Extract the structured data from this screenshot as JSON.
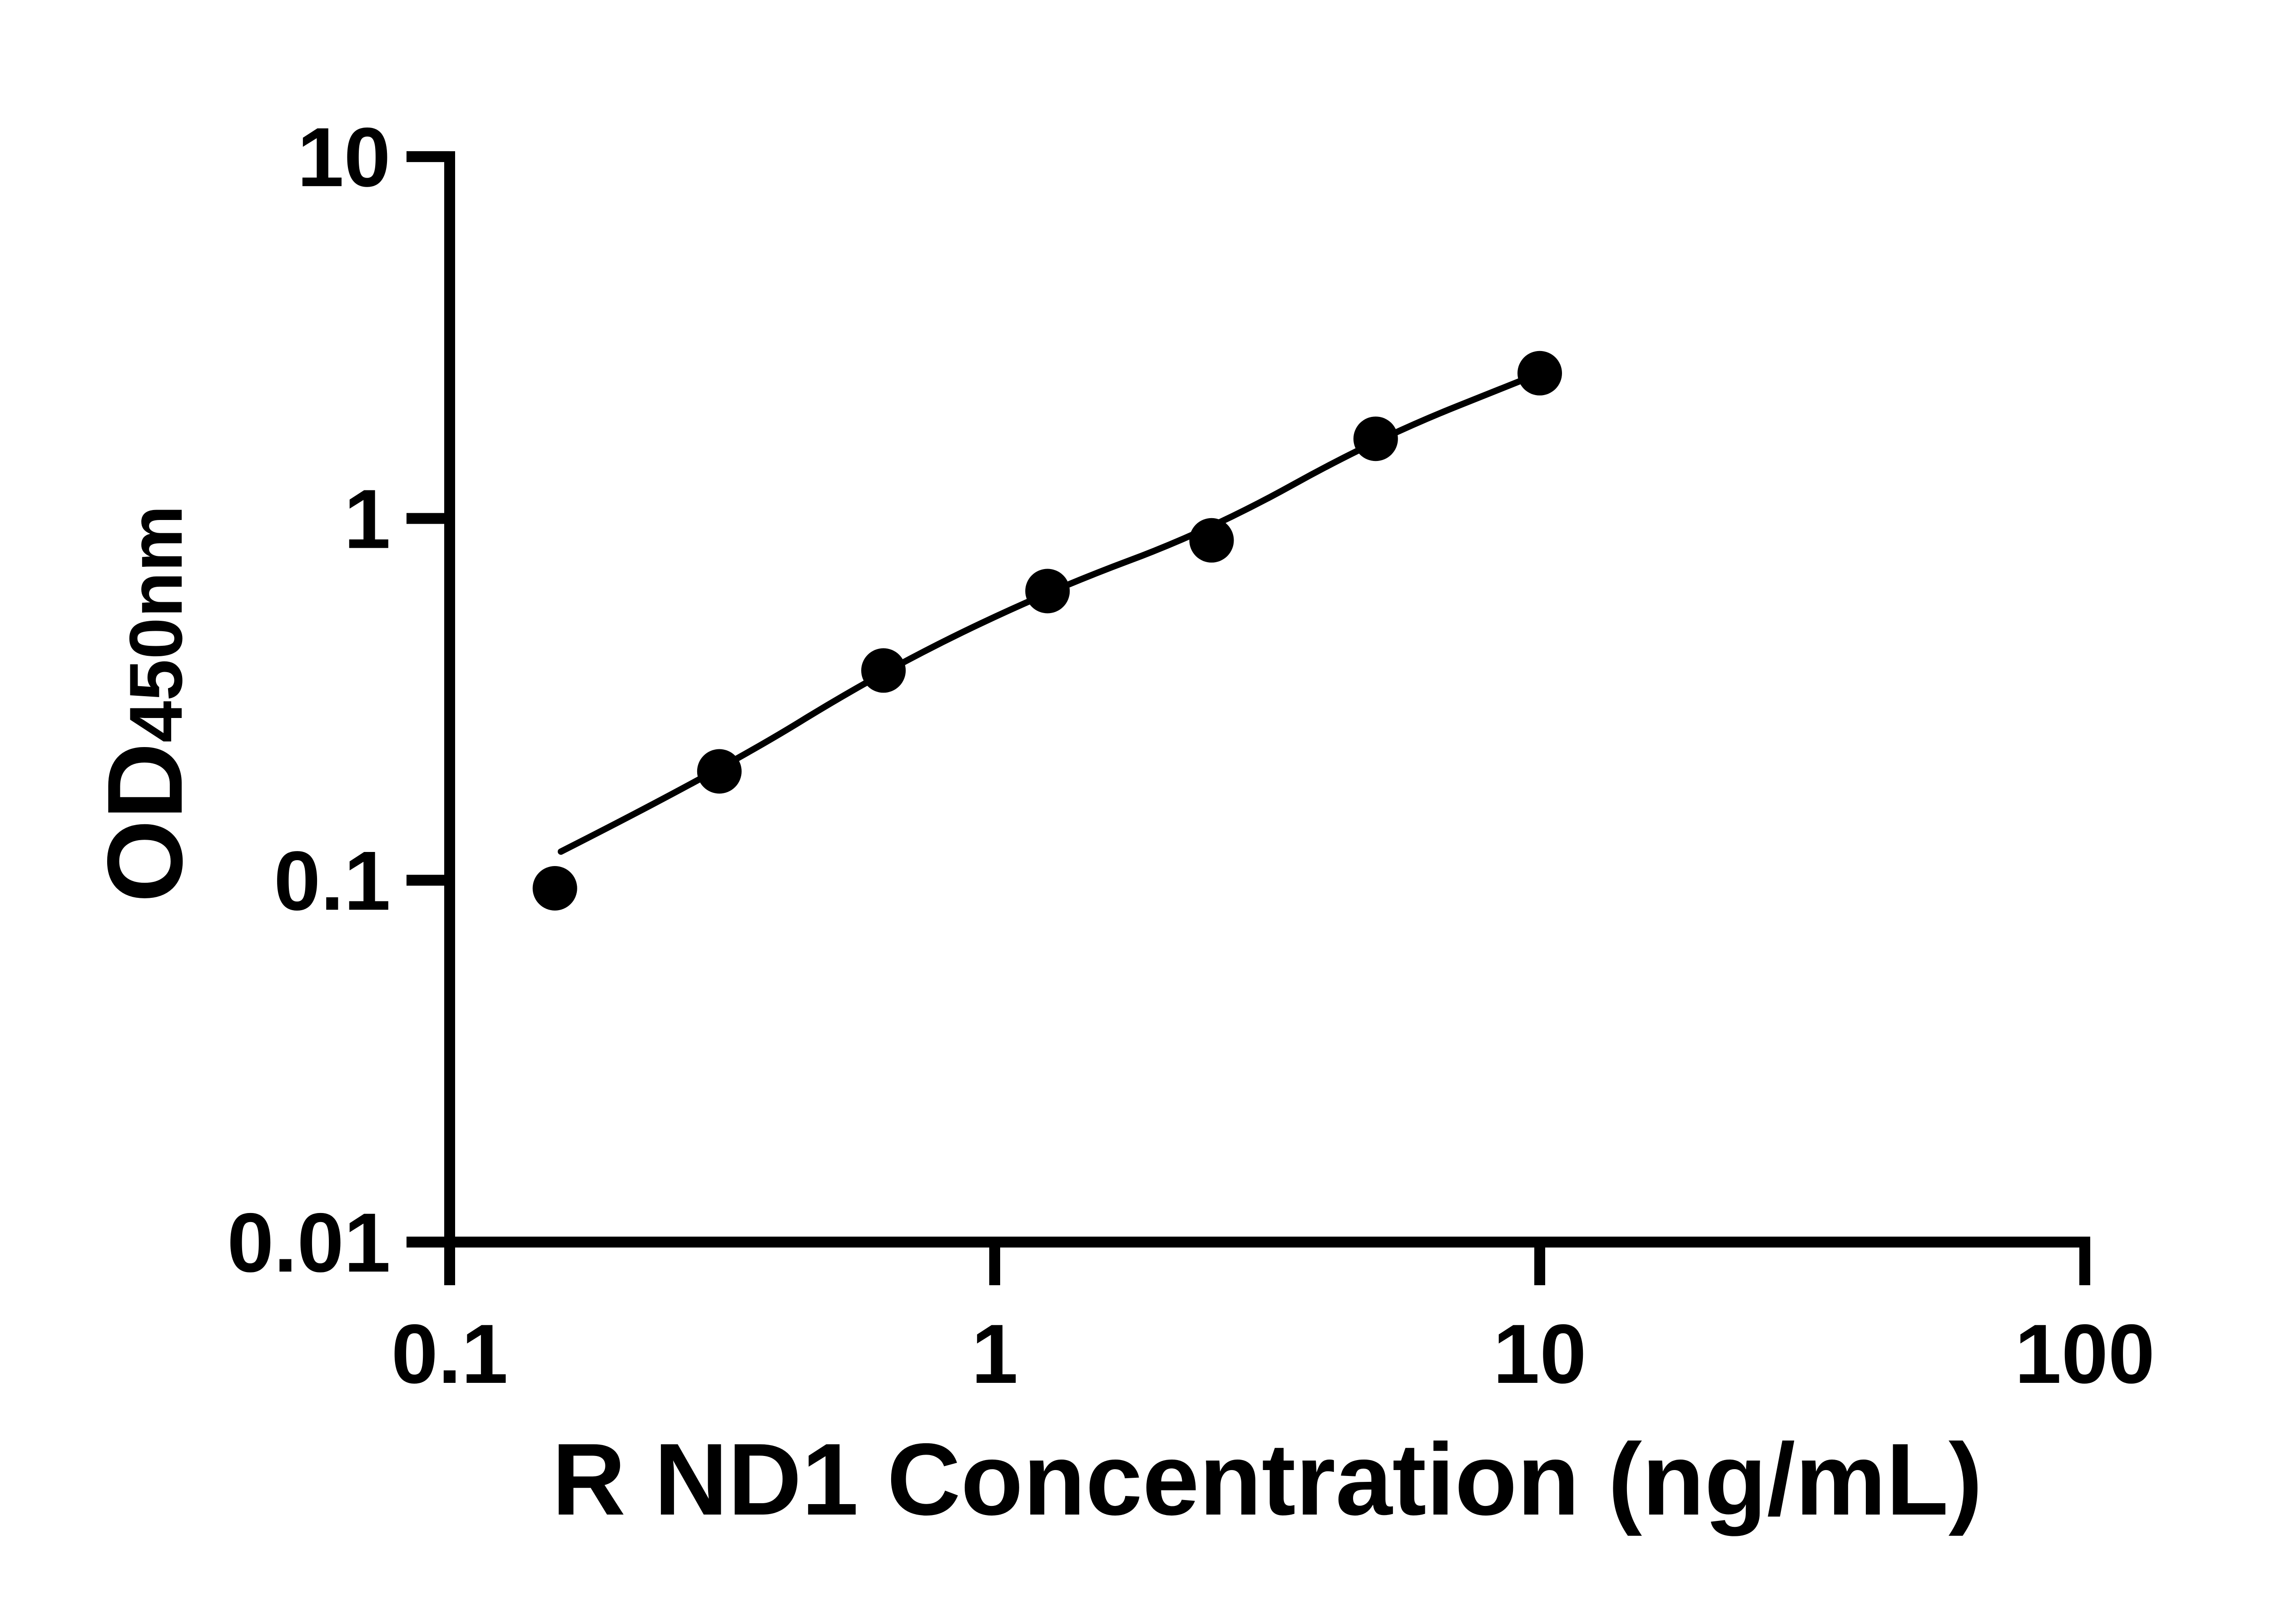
{
  "chart_data": {
    "type": "scatter",
    "title": "",
    "xlabel": "R ND1 Concentration (ng/mL)",
    "ylabel_main": "OD",
    "ylabel_sub": "450nm",
    "x_scale": "log10",
    "y_scale": "log10",
    "xlim": [
      0.1,
      100
    ],
    "ylim": [
      0.01,
      10
    ],
    "grid": false,
    "legend": null,
    "x_ticks": [
      {
        "value": 0.1,
        "label": "0.1"
      },
      {
        "value": 1,
        "label": "1"
      },
      {
        "value": 10,
        "label": "10"
      },
      {
        "value": 100,
        "label": "100"
      }
    ],
    "y_ticks": [
      {
        "value": 0.01,
        "label": "0.01"
      },
      {
        "value": 0.1,
        "label": "0.1"
      },
      {
        "value": 1,
        "label": "1"
      },
      {
        "value": 10,
        "label": "10"
      }
    ],
    "series": [
      {
        "name": "standard-points",
        "kind": "scatter",
        "marker": "circle",
        "color": "#000000",
        "points": [
          {
            "x": 0.156,
            "y": 0.095
          },
          {
            "x": 0.3125,
            "y": 0.2
          },
          {
            "x": 0.625,
            "y": 0.38
          },
          {
            "x": 1.25,
            "y": 0.63
          },
          {
            "x": 2.5,
            "y": 0.87
          },
          {
            "x": 5,
            "y": 1.66
          },
          {
            "x": 10,
            "y": 2.52
          }
        ]
      },
      {
        "name": "fit-line",
        "kind": "line",
        "color": "#000000",
        "points": [
          {
            "x": 0.16,
            "y": 0.12
          },
          {
            "x": 0.3125,
            "y": 0.2
          },
          {
            "x": 0.625,
            "y": 0.38
          },
          {
            "x": 1.25,
            "y": 0.63
          },
          {
            "x": 2.5,
            "y": 0.93
          },
          {
            "x": 5,
            "y": 1.66
          },
          {
            "x": 10,
            "y": 2.52
          }
        ]
      }
    ],
    "colors": {
      "axis": "#000000",
      "marker": "#000000",
      "background": "#ffffff"
    }
  }
}
